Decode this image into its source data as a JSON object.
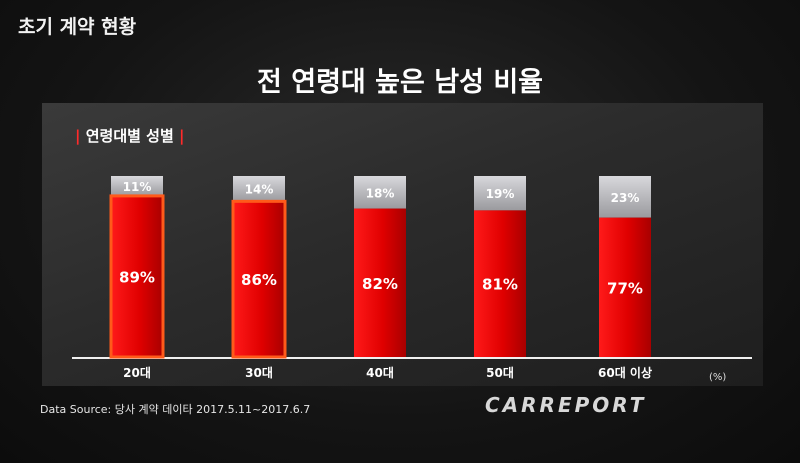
{
  "header": {
    "title": "초기 계약 현황"
  },
  "section_label": "연령대별 성별",
  "unit_label": "(%)",
  "source": "Data Source: 당사 계약 데이타 2017.5.11~2017.6.7",
  "logo": "CARREPORT",
  "colors": {
    "male": "#e60000",
    "female": "#c9c9cc",
    "highlight": "#ff5a1a"
  },
  "chart_data": {
    "type": "bar",
    "stacked": true,
    "title": "전 연령대 높은 남성 비율",
    "categories": [
      "20대",
      "30대",
      "40대",
      "50대",
      "60대 이상"
    ],
    "series": [
      {
        "values": [
          89,
          86,
          82,
          81,
          77
        ],
        "labels": [
          "89%",
          "86%",
          "82%",
          "81%",
          "77%"
        ]
      },
      {
        "values": [
          11,
          14,
          18,
          19,
          23
        ],
        "labels": [
          "11%",
          "14%",
          "18%",
          "19%",
          "23%"
        ]
      }
    ],
    "highlighted_categories": [
      "20대",
      "30대"
    ],
    "ylim": [
      0,
      100
    ]
  }
}
